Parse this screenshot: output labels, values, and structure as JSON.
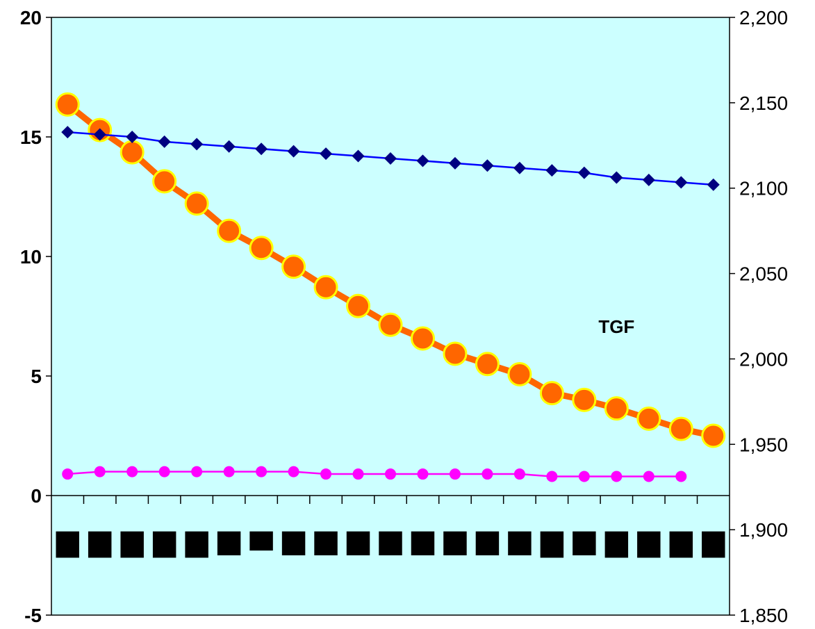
{
  "chart_data": {
    "type": "line",
    "title": "",
    "xlabel": "",
    "ylabel": "",
    "ylim": [
      -5,
      20
    ],
    "y2lim": [
      1850,
      2200
    ],
    "grid": false,
    "plot_background": "#CCFFFF",
    "left_ticks": [
      "-5",
      "0",
      "5",
      "10",
      "15",
      "20"
    ],
    "left_tick_values": [
      -5,
      0,
      5,
      10,
      15,
      20
    ],
    "right_ticks": [
      "1,850",
      "1,900",
      "1,950",
      "2,000",
      "2,050",
      "2,100",
      "2,150",
      "2,200"
    ],
    "right_tick_values": [
      1850,
      1900,
      1950,
      2000,
      2050,
      2100,
      2150,
      2200
    ],
    "annotations": [
      {
        "text": "TGF",
        "x": 17.5,
        "y": 6.8
      }
    ],
    "category_count": 21,
    "series": [
      {
        "axis": "right",
        "marker": "circle",
        "color": "#FF6600",
        "marker_face": "#FF6600",
        "marker_edge": "#FFFF00",
        "values": [
          2149,
          2134,
          2121,
          2104,
          2091,
          2075,
          2065,
          2054,
          2042,
          2031,
          2020,
          2012,
          2003,
          1997,
          1991,
          1980,
          1976,
          1971,
          1965,
          1959,
          1955
        ]
      },
      {
        "axis": "left",
        "marker": "diamond",
        "color": "#0000FF",
        "marker_face": "#000080",
        "values": [
          15.2,
          15.1,
          15.0,
          14.8,
          14.7,
          14.6,
          14.5,
          14.4,
          14.3,
          14.2,
          14.1,
          14.0,
          13.9,
          13.8,
          13.7,
          13.6,
          13.5,
          13.3,
          13.2,
          13.1,
          13.0
        ]
      },
      {
        "axis": "left",
        "marker": "circle",
        "color": "#FF00FF",
        "marker_face": "#FF00FF",
        "values": [
          0.9,
          1.0,
          1.0,
          1.0,
          1.0,
          1.0,
          1.0,
          1.0,
          0.9,
          0.9,
          0.9,
          0.9,
          0.9,
          0.9,
          0.9,
          0.8,
          0.8,
          0.8,
          0.8,
          0.8,
          null
        ]
      },
      {
        "axis": "left",
        "type": "bar",
        "color": "#000000",
        "values": [
          -2.6,
          -2.6,
          -2.6,
          -2.6,
          -2.6,
          -2.5,
          -2.3,
          -2.5,
          -2.5,
          -2.5,
          -2.5,
          -2.5,
          -2.5,
          -2.5,
          -2.5,
          -2.6,
          -2.5,
          -2.6,
          -2.6,
          -2.6,
          -2.6
        ]
      }
    ]
  }
}
